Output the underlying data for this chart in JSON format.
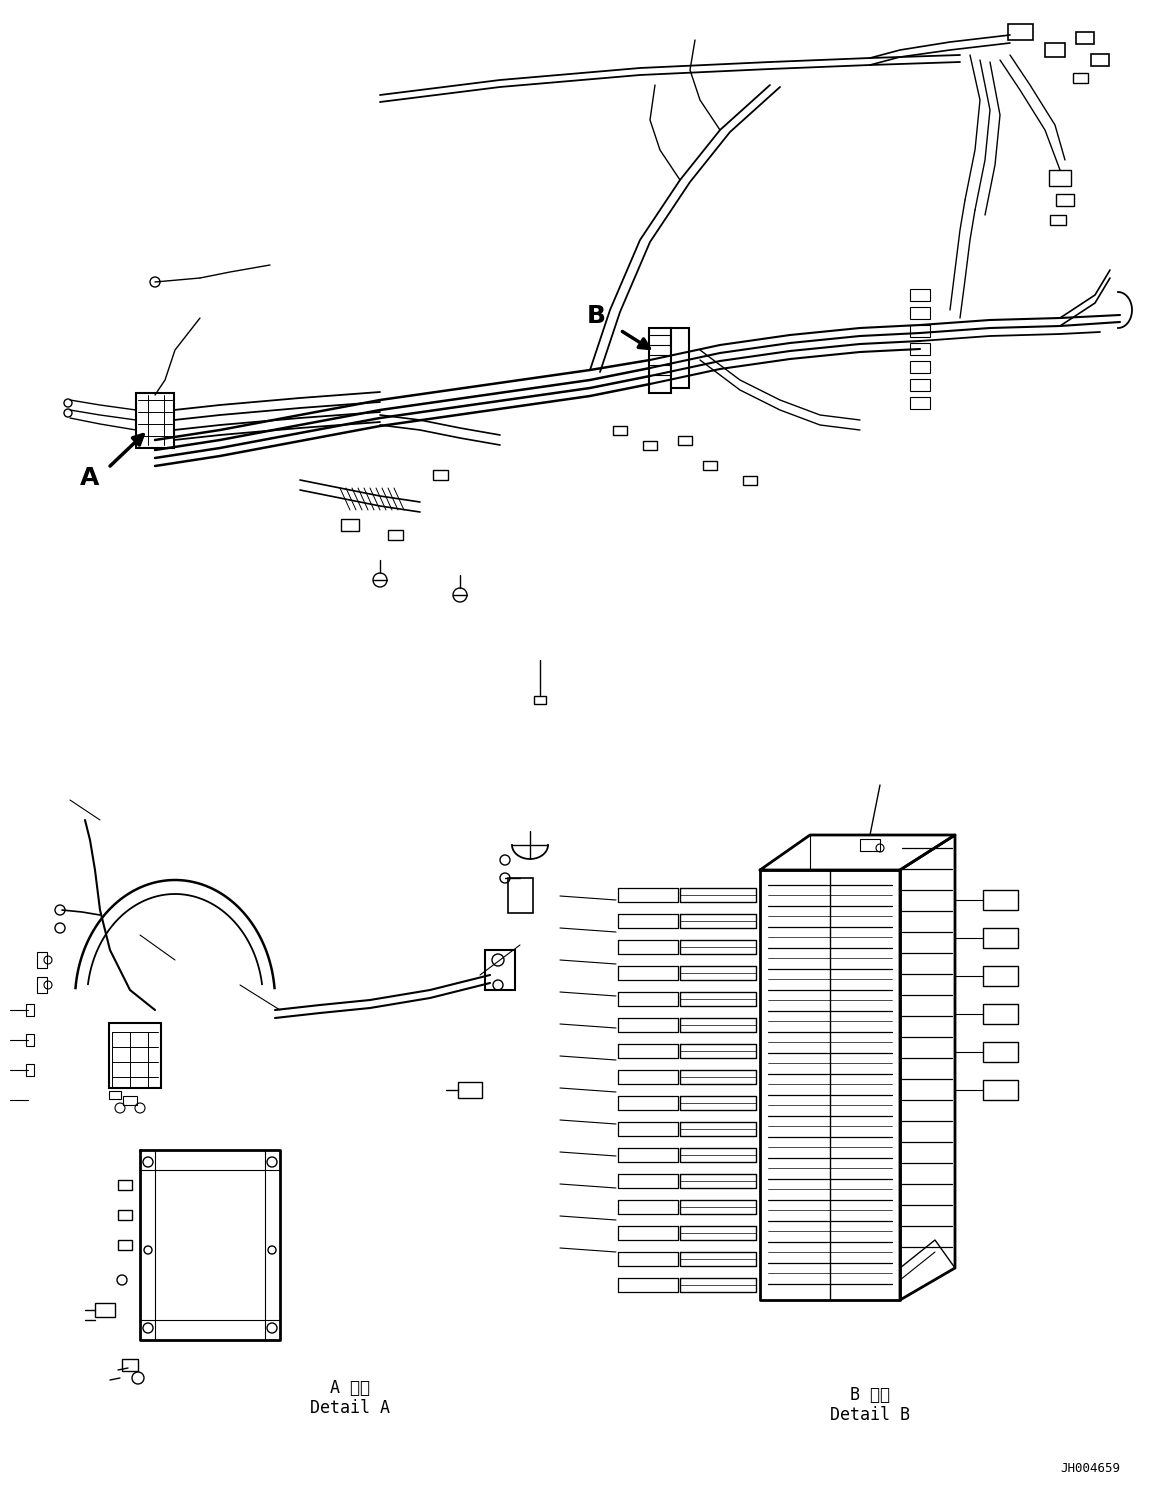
{
  "background_color": "#ffffff",
  "figure_width": 11.63,
  "figure_height": 14.88,
  "dpi": 100,
  "label_A": "A",
  "label_B": "B",
  "detail_A_jp": "A 詳細",
  "detail_A_en": "Detail A",
  "detail_B_jp": "B 詳細",
  "detail_B_en": "Detail B",
  "part_number": "JH004659",
  "line_color": "#000000",
  "line_width": 1.2
}
